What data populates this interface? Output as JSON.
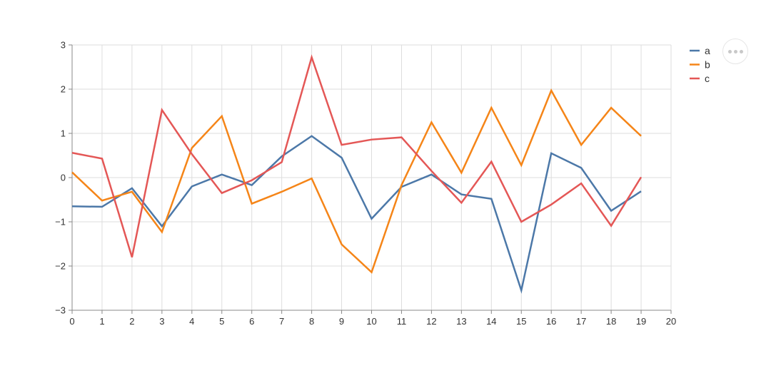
{
  "chart_data": {
    "type": "line",
    "title": "",
    "xlabel": "",
    "ylabel": "",
    "x": [
      0,
      1,
      2,
      3,
      4,
      5,
      6,
      7,
      8,
      9,
      10,
      11,
      12,
      13,
      14,
      15,
      16,
      17,
      18,
      19
    ],
    "xlim": [
      0,
      20
    ],
    "ylim": [
      -3,
      3
    ],
    "x_ticks": [
      "0",
      "1",
      "2",
      "3",
      "4",
      "5",
      "6",
      "7",
      "8",
      "9",
      "10",
      "11",
      "12",
      "13",
      "14",
      "15",
      "16",
      "17",
      "18",
      "19",
      "20"
    ],
    "y_ticks": [
      "3",
      "2",
      "1",
      "0",
      "−1",
      "−2",
      "−3"
    ],
    "grid": true,
    "legend_position": "top-right",
    "series": [
      {
        "name": "a",
        "color": "#4c78a8",
        "values": [
          -0.65,
          -0.66,
          -0.24,
          -1.1,
          -0.2,
          0.07,
          -0.17,
          0.48,
          0.94,
          0.45,
          -0.93,
          -0.21,
          0.07,
          -0.38,
          -0.48,
          -2.55,
          0.55,
          0.22,
          -0.75,
          -0.31
        ]
      },
      {
        "name": "b",
        "color": "#f58518",
        "values": [
          0.12,
          -0.52,
          -0.32,
          -1.23,
          0.67,
          1.39,
          -0.59,
          -0.32,
          -0.02,
          -1.51,
          -2.14,
          -0.17,
          1.25,
          0.11,
          1.58,
          0.28,
          1.97,
          0.74,
          1.58,
          0.94
        ]
      },
      {
        "name": "c",
        "color": "#e45756",
        "values": [
          0.56,
          0.43,
          -1.8,
          1.53,
          0.53,
          -0.35,
          -0.06,
          0.35,
          2.72,
          0.74,
          0.86,
          0.91,
          0.15,
          -0.57,
          0.36,
          -1.0,
          -0.61,
          -0.13,
          -1.09,
          0.01
        ]
      }
    ]
  },
  "toolbar": {
    "menu_icon": "ellipsis-icon"
  }
}
